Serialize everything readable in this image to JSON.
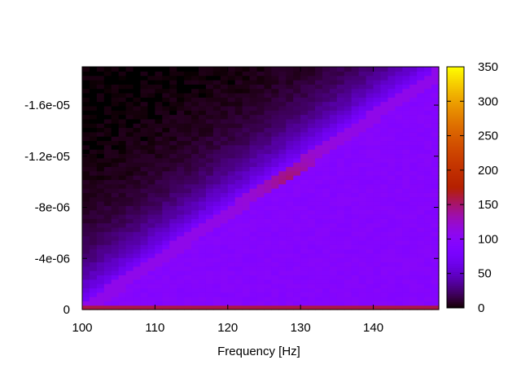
{
  "chart_data": {
    "type": "heatmap",
    "title": "",
    "xlabel": "Frequency [Hz]",
    "ylabel": "",
    "x_range": [
      100,
      149
    ],
    "y_range": [
      0,
      -1.9e-05
    ],
    "x_ticks": [
      {
        "value": 100,
        "label": "100"
      },
      {
        "value": 110,
        "label": "110"
      },
      {
        "value": 120,
        "label": "120"
      },
      {
        "value": 130,
        "label": "130"
      },
      {
        "value": 140,
        "label": "140"
      }
    ],
    "y_ticks": [
      {
        "value": 0,
        "label": "0"
      },
      {
        "value": -4e-06,
        "label": "-4e-06"
      },
      {
        "value": -8e-06,
        "label": "-8e-06"
      },
      {
        "value": -1.2e-05,
        "label": "-1.2e-05"
      },
      {
        "value": -1.6e-05,
        "label": "-1.6e-05"
      }
    ],
    "colorbar": {
      "range": [
        0,
        350
      ],
      "palette": "gnuplot",
      "ticks": [
        {
          "value": 0,
          "label": "0"
        },
        {
          "value": 50,
          "label": "50"
        },
        {
          "value": 100,
          "label": "100"
        },
        {
          "value": 150,
          "label": "150"
        },
        {
          "value": 200,
          "label": "200"
        },
        {
          "value": 250,
          "label": "250"
        },
        {
          "value": 300,
          "label": "300"
        },
        {
          "value": 350,
          "label": "350"
        }
      ]
    },
    "grid": false,
    "pattern": {
      "ridge": {
        "from": {
          "x": 100,
          "y": 0
        },
        "to": {
          "x": 149,
          "y": -1.85e-05
        }
      },
      "ridge_peak": {
        "x": 129,
        "y": -1e-05,
        "value": 160
      },
      "bottom_row_value": 160,
      "background_value": 95
    }
  }
}
